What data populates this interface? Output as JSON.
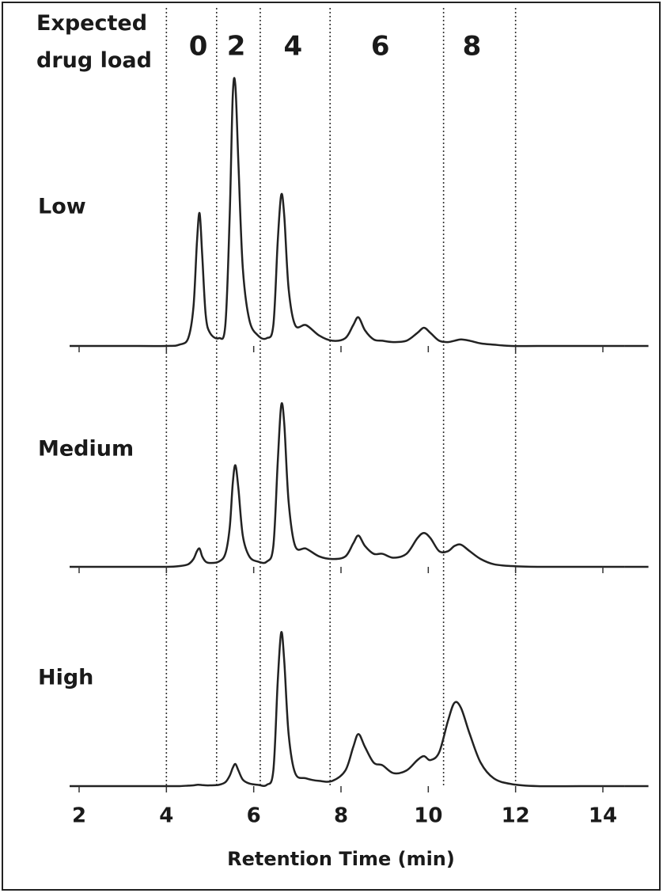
{
  "chart_data": {
    "type": "line",
    "header_label": "Expected drug load",
    "x_label": "Retention Time (min)",
    "xlim": [
      2,
      14.5
    ],
    "xticks": [
      2,
      4,
      6,
      8,
      10,
      12,
      14
    ],
    "ylim": [
      0,
      100
    ],
    "boundaries": [
      4.0,
      5.15,
      6.15,
      7.75,
      10.35,
      12.0
    ],
    "drug_load_regions": [
      {
        "load": 0,
        "x": 4.73
      },
      {
        "load": 2,
        "x": 5.6
      },
      {
        "load": 4,
        "x": 6.9
      },
      {
        "load": 6,
        "x": 8.9
      },
      {
        "load": 8,
        "x": 11.0
      }
    ],
    "x": [
      2,
      3,
      4,
      4.3,
      4.5,
      4.62,
      4.7,
      4.76,
      4.82,
      4.9,
      5.0,
      5.2,
      5.35,
      5.45,
      5.52,
      5.58,
      5.65,
      5.75,
      5.9,
      6.1,
      6.3,
      6.45,
      6.55,
      6.63,
      6.7,
      6.8,
      6.95,
      7.2,
      7.5,
      7.8,
      8.1,
      8.28,
      8.4,
      8.55,
      8.75,
      8.95,
      9.2,
      9.5,
      9.75,
      9.9,
      10.05,
      10.25,
      10.45,
      10.6,
      10.75,
      10.95,
      11.2,
      11.5,
      11.9,
      12.5,
      13.5,
      14.5
    ],
    "series": [
      {
        "name": "Low",
        "color": "#222222",
        "values": [
          0,
          0,
          0,
          0.5,
          3,
          15,
          40,
          51,
          35,
          12,
          5,
          3,
          8,
          50,
          96,
          100,
          70,
          30,
          10,
          4,
          3,
          8,
          40,
          58,
          50,
          22,
          8,
          8,
          4,
          2,
          3,
          8,
          11,
          6,
          2.5,
          2,
          1.5,
          2,
          5,
          7,
          5,
          2,
          1.5,
          2,
          2.5,
          2,
          1,
          0.5,
          0,
          0,
          0,
          0
        ]
      },
      {
        "name": "Medium",
        "color": "#222222",
        "values": [
          0,
          0,
          0,
          0.3,
          1,
          3,
          6,
          7,
          4,
          2,
          1.5,
          2,
          5,
          15,
          32,
          39,
          30,
          12,
          4,
          2,
          2,
          8,
          40,
          62,
          55,
          25,
          8,
          7,
          4,
          3,
          4,
          9,
          12,
          8,
          5,
          5,
          3.5,
          5,
          11,
          13,
          11,
          6,
          6,
          8,
          8.5,
          6,
          3,
          1,
          0.3,
          0,
          0,
          0
        ]
      },
      {
        "name": "High",
        "color": "#222222",
        "values": [
          0,
          0,
          0,
          0,
          0.2,
          0.3,
          0.5,
          0.5,
          0.4,
          0.3,
          0.3,
          0.5,
          1.5,
          4,
          7,
          8.5,
          6,
          2.5,
          1,
          0.5,
          0.5,
          6,
          40,
          59,
          48,
          20,
          5,
          3,
          2,
          2,
          6,
          15,
          20,
          15,
          9,
          8,
          5,
          6,
          10,
          11.5,
          10,
          13,
          25,
          32,
          30,
          20,
          9,
          3,
          0.8,
          0,
          0,
          0
        ]
      }
    ]
  }
}
